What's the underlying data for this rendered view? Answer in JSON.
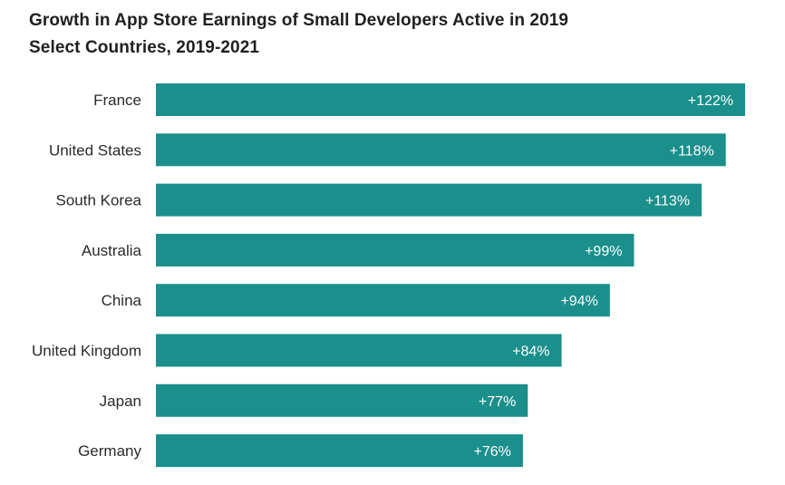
{
  "title_lines": [
    "Growth in App Store Earnings of Small Developers Active in 2019",
    "Select Countries, 2019-2021"
  ],
  "colors": {
    "bar": "#1a8f8b",
    "text": "#2a2a2a",
    "value_text": "#ffffff"
  },
  "chart_data": {
    "type": "bar",
    "orientation": "horizontal",
    "title": "Growth in App Store Earnings of Small Developers Active in 2019",
    "subtitle": "Select Countries, 2019-2021",
    "categories": [
      "France",
      "United States",
      "South Korea",
      "Australia",
      "China",
      "United Kingdom",
      "Japan",
      "Germany"
    ],
    "values": [
      122,
      118,
      113,
      99,
      94,
      84,
      77,
      76
    ],
    "value_labels": [
      "+122%",
      "+118%",
      "+113%",
      "+99%",
      "+94%",
      "+84%",
      "+77%",
      "+76%"
    ],
    "xlim": [
      0,
      122
    ],
    "grid": false,
    "legend": "none"
  }
}
